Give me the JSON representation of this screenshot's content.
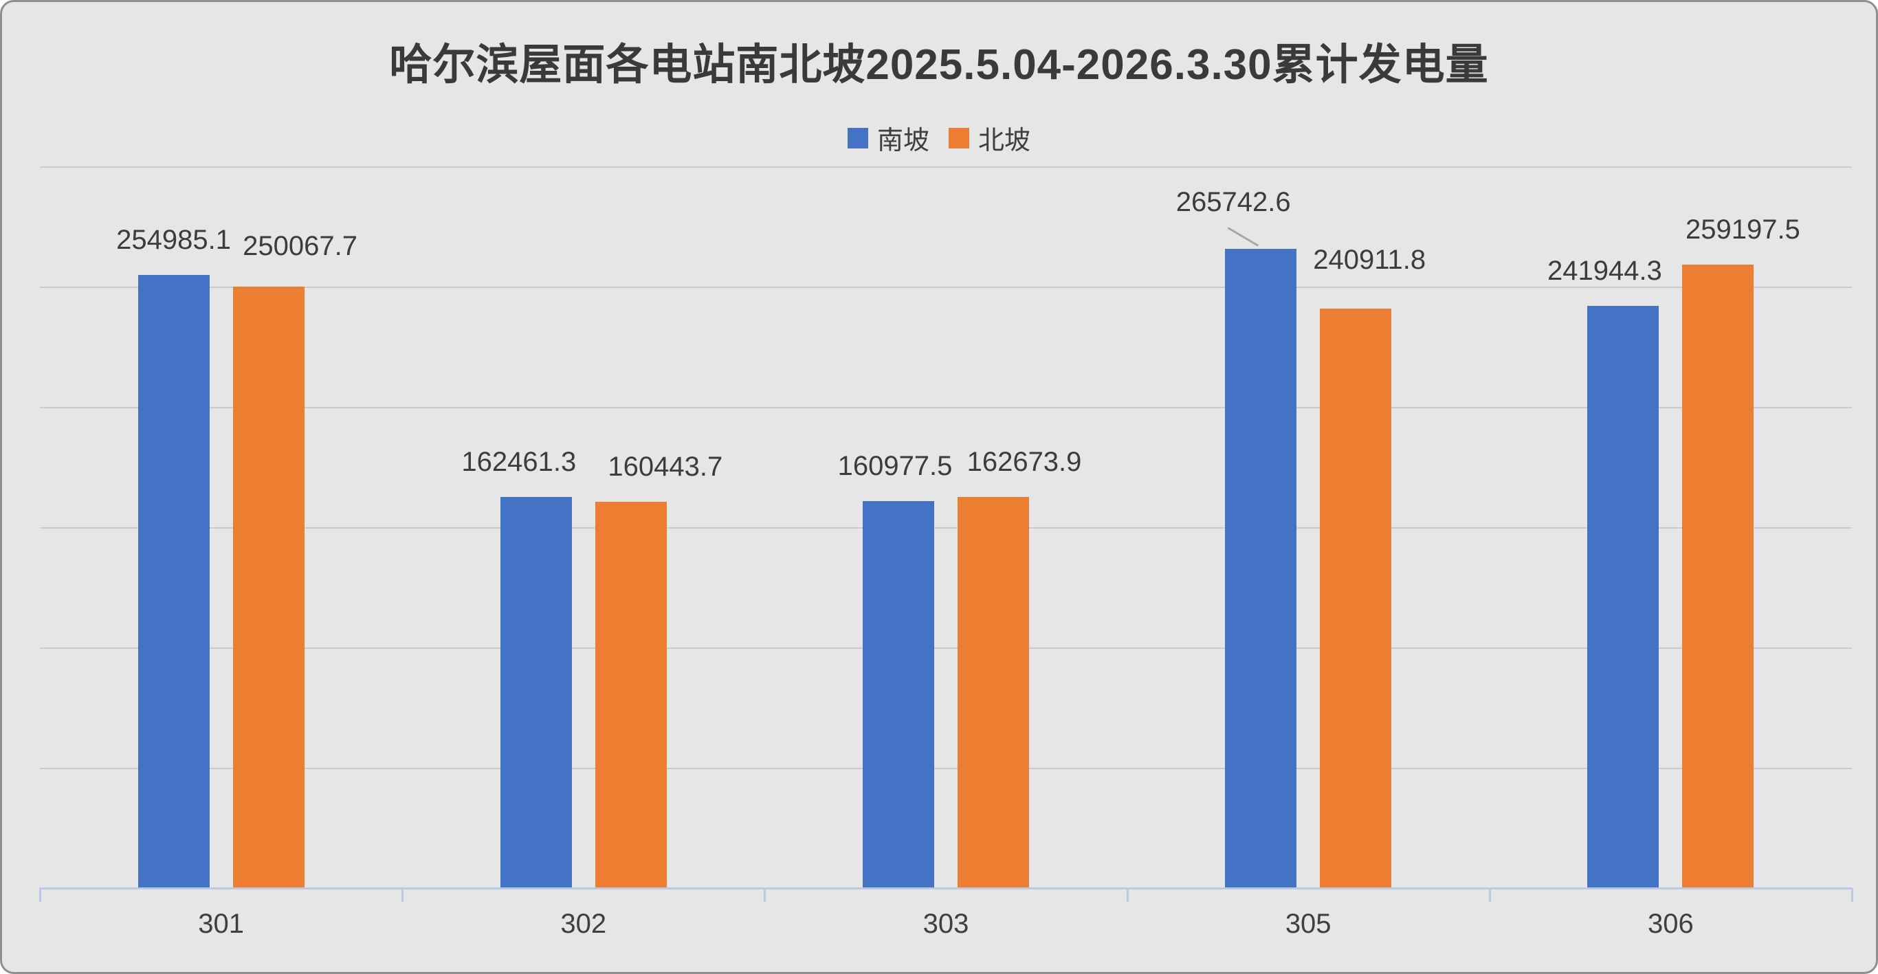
{
  "frame": {
    "background_color": "#e6e6e6",
    "border_color": "#8f8f8f"
  },
  "chart_data": {
    "type": "bar",
    "title": "哈尔滨屋面各电站南北坡2025.5.04-2026.3.30累计发电量",
    "categories": [
      "301",
      "302",
      "303",
      "305",
      "306"
    ],
    "series": [
      {
        "name": "南坡",
        "color": "#4472C4",
        "values": [
          254985.1,
          162461.3,
          160977.5,
          265742.6,
          241944.3
        ]
      },
      {
        "name": "北坡",
        "color": "#ED7D31",
        "values": [
          250067.7,
          160443.7,
          162673.9,
          240911.8,
          259197.5
        ]
      }
    ],
    "xlabel": "",
    "ylabel": "",
    "ylim": [
      0,
      300000
    ],
    "grid_step": 50000,
    "grid": "on",
    "y_tick_labels_visible": false,
    "legend_position": "top-center",
    "data_labels": "outside-end",
    "label_decimals": 1,
    "colors": {
      "gridline": "#cbcbcb",
      "axis_line": "#bcc9e6",
      "leader_line": "#a6a6a6",
      "text": "#3f3f3f"
    }
  }
}
